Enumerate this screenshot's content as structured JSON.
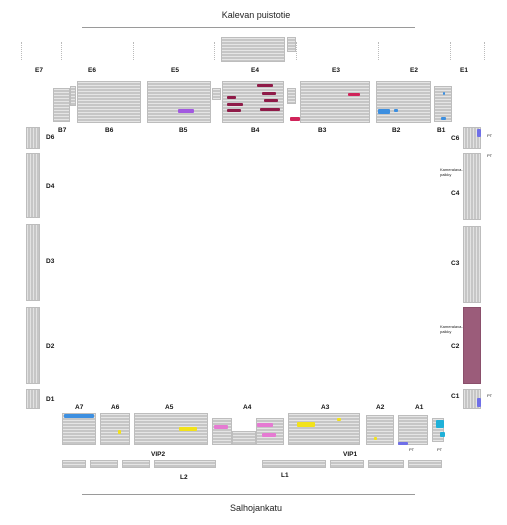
{
  "streets": {
    "top": "Kalevan puistotie",
    "bottom": "Salhojankatu"
  },
  "sections": {
    "top_outer": [
      "E7",
      "E6",
      "E5",
      "E4",
      "E3",
      "E2",
      "E1"
    ],
    "top_inner": [
      "B7",
      "B6",
      "B5",
      "B4",
      "B3",
      "B2",
      "B1"
    ],
    "left": [
      "D6",
      "D4",
      "D3",
      "D2",
      "D1"
    ],
    "right": [
      "C6",
      "C4",
      "C3",
      "C2",
      "C1"
    ],
    "bottom": [
      "A7",
      "A6",
      "A5",
      "A4",
      "A3",
      "A2",
      "A1"
    ],
    "vip": [
      "VIP2",
      "VIP1"
    ],
    "lower": [
      "L2",
      "L1"
    ]
  },
  "notes": {
    "pt": "PT",
    "camera_platform": "Kameralava-\npaikky"
  },
  "colors": {
    "seat": "#c6c6c6",
    "highlight_section": "#9b5c7a",
    "maroon": "#8f1b48",
    "crimson": "#d0245a",
    "purple": "#a259e0",
    "blue": "#3d8fe0",
    "cyan": "#1fb0d8",
    "yellow": "#f2e21a",
    "pink": "#e57ad2",
    "periwinkle": "#6f6fe8"
  }
}
